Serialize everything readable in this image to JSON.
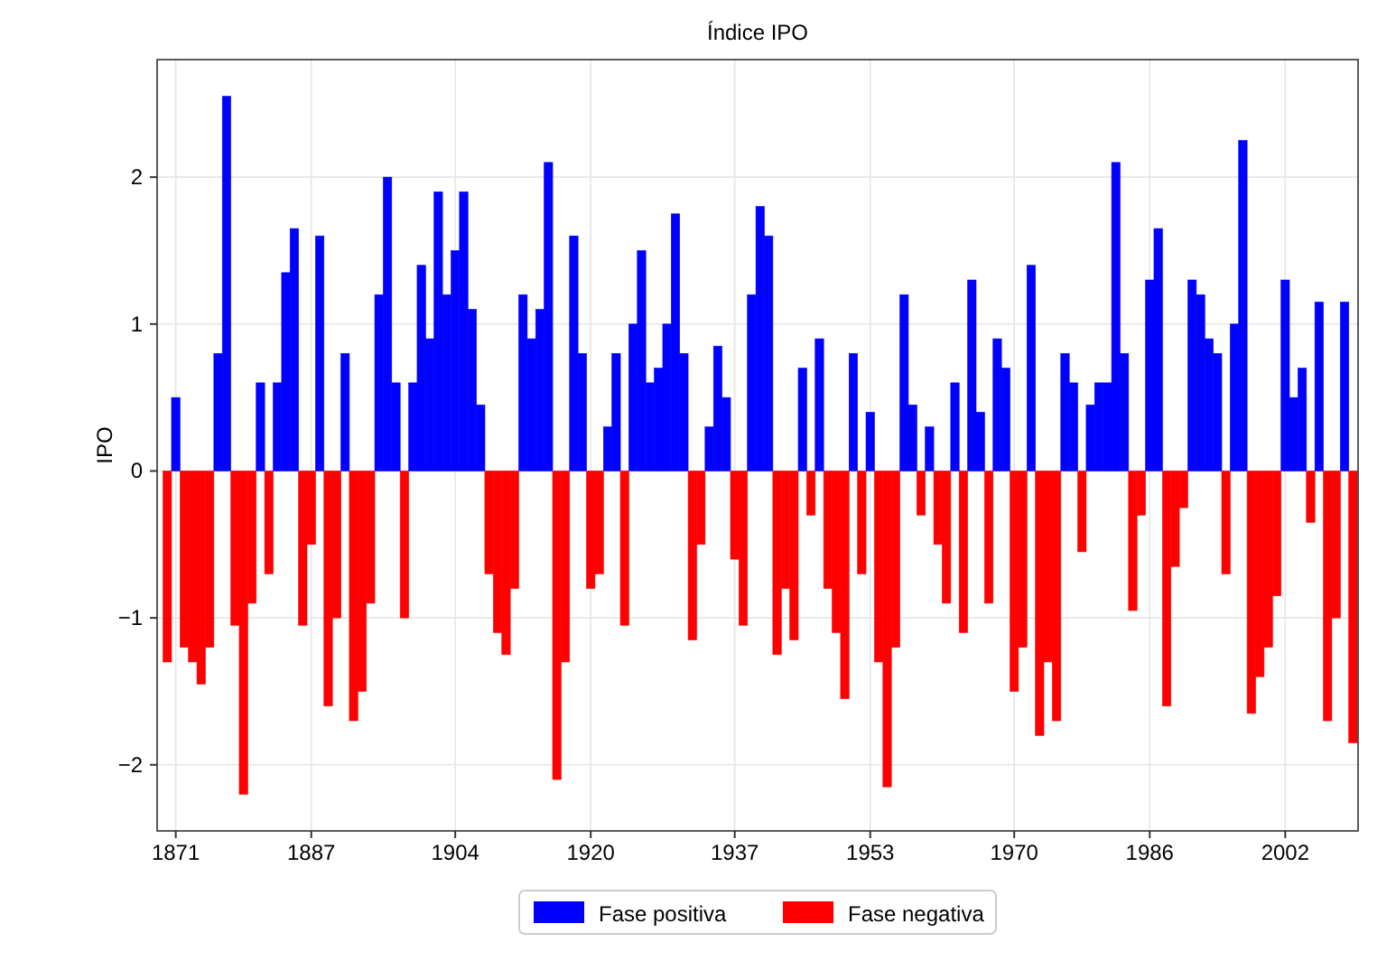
{
  "chart_data": {
    "type": "bar",
    "title": "Índice IPO",
    "ylabel": "IPO",
    "x": [
      1870,
      1871,
      1872,
      1873,
      1874,
      1875,
      1876,
      1877,
      1878,
      1879,
      1880,
      1881,
      1882,
      1883,
      1884,
      1885,
      1886,
      1887,
      1888,
      1889,
      1890,
      1891,
      1892,
      1893,
      1894,
      1895,
      1896,
      1897,
      1898,
      1899,
      1900,
      1901,
      1902,
      1903,
      1904,
      1905,
      1906,
      1907,
      1908,
      1909,
      1910,
      1911,
      1912,
      1913,
      1914,
      1915,
      1916,
      1917,
      1918,
      1919,
      1920,
      1921,
      1922,
      1923,
      1924,
      1925,
      1926,
      1927,
      1928,
      1929,
      1930,
      1931,
      1932,
      1933,
      1934,
      1935,
      1936,
      1937,
      1938,
      1939,
      1940,
      1941,
      1942,
      1943,
      1944,
      1945,
      1946,
      1947,
      1948,
      1949,
      1950,
      1951,
      1952,
      1953,
      1954,
      1955,
      1956,
      1957,
      1958,
      1959,
      1960,
      1961,
      1962,
      1963,
      1964,
      1965,
      1966,
      1967,
      1968,
      1969,
      1970,
      1971,
      1972,
      1973,
      1974,
      1975,
      1976,
      1977,
      1978,
      1979,
      1980,
      1981,
      1982,
      1983,
      1984,
      1985,
      1986,
      1987,
      1988,
      1989,
      1990,
      1991,
      1992,
      1993,
      1994,
      1995,
      1996,
      1997,
      1998,
      1999,
      2000,
      2001,
      2002,
      2003,
      2004,
      2005,
      2006,
      2007,
      2008,
      2009,
      2010
    ],
    "series": [
      {
        "name": "Fase positiva",
        "color": "#0000ff",
        "values": [
          null,
          0.5,
          null,
          null,
          null,
          null,
          0.8,
          2.55,
          null,
          null,
          null,
          0.6,
          null,
          0.6,
          1.35,
          1.65,
          null,
          null,
          1.6,
          null,
          null,
          0.8,
          null,
          null,
          null,
          1.2,
          2.0,
          0.6,
          null,
          0.6,
          1.4,
          0.9,
          1.9,
          1.2,
          1.5,
          1.9,
          1.1,
          0.45,
          null,
          null,
          null,
          null,
          1.2,
          0.9,
          1.1,
          2.1,
          null,
          null,
          1.6,
          0.8,
          null,
          null,
          0.3,
          0.8,
          null,
          1.0,
          1.5,
          0.6,
          0.7,
          1.0,
          1.75,
          0.8,
          null,
          null,
          0.3,
          0.85,
          0.5,
          null,
          null,
          1.2,
          1.8,
          1.6,
          null,
          null,
          null,
          0.7,
          null,
          0.9,
          null,
          null,
          null,
          0.8,
          null,
          0.4,
          null,
          null,
          null,
          1.2,
          0.45,
          null,
          0.3,
          null,
          null,
          0.6,
          null,
          1.3,
          0.4,
          null,
          0.9,
          0.7,
          null,
          null,
          1.4,
          null,
          null,
          null,
          0.8,
          0.6,
          null,
          0.45,
          0.6,
          0.6,
          2.1,
          0.8,
          null,
          null,
          1.3,
          1.65,
          null,
          null,
          null,
          1.3,
          1.2,
          0.9,
          0.8,
          null,
          1.0,
          2.25,
          null,
          null,
          null,
          null,
          1.3,
          0.5,
          0.7,
          null,
          1.15,
          null,
          null,
          1.15,
          null
        ]
      },
      {
        "name": "Fase negativa",
        "color": "#ff0000",
        "values": [
          -1.3,
          null,
          -1.2,
          -1.3,
          -1.45,
          -1.2,
          null,
          null,
          -1.05,
          -2.2,
          -0.9,
          null,
          -0.7,
          null,
          null,
          null,
          -1.05,
          -0.5,
          null,
          -1.6,
          -1.0,
          null,
          -1.7,
          -1.5,
          -0.9,
          null,
          null,
          null,
          -1.0,
          null,
          null,
          null,
          null,
          null,
          null,
          null,
          null,
          null,
          -0.7,
          -1.1,
          -1.25,
          -0.8,
          null,
          null,
          null,
          null,
          -2.1,
          -1.3,
          null,
          null,
          -0.8,
          -0.7,
          null,
          null,
          -1.05,
          null,
          null,
          null,
          null,
          null,
          null,
          null,
          -1.15,
          -0.5,
          null,
          null,
          null,
          -0.6,
          -1.05,
          null,
          null,
          null,
          -1.25,
          -0.8,
          -1.15,
          null,
          -0.3,
          null,
          -0.8,
          -1.1,
          -1.55,
          null,
          -0.7,
          null,
          -1.3,
          -2.15,
          -1.2,
          null,
          null,
          -0.3,
          null,
          -0.5,
          -0.9,
          null,
          -1.1,
          null,
          null,
          -0.9,
          null,
          null,
          -1.5,
          -1.2,
          null,
          -1.8,
          -1.3,
          -1.7,
          null,
          null,
          -0.55,
          null,
          null,
          null,
          null,
          null,
          -0.95,
          -0.3,
          null,
          null,
          -1.6,
          -0.65,
          -0.25,
          null,
          null,
          null,
          null,
          -0.7,
          null,
          null,
          -1.65,
          -1.4,
          -1.2,
          -0.85,
          null,
          null,
          null,
          -0.35,
          null,
          -1.7,
          -1.0,
          null,
          -1.85
        ]
      }
    ],
    "xlim": [
      1868.8,
      2010.6
    ],
    "xticks": [
      1871,
      1887,
      1904,
      1920,
      1937,
      1953,
      1970,
      1986,
      2002
    ],
    "ylim": [
      -2.45,
      2.8
    ],
    "yticks": [
      -2,
      -1,
      0,
      1,
      2
    ],
    "grid": true,
    "legend": "bottom"
  }
}
